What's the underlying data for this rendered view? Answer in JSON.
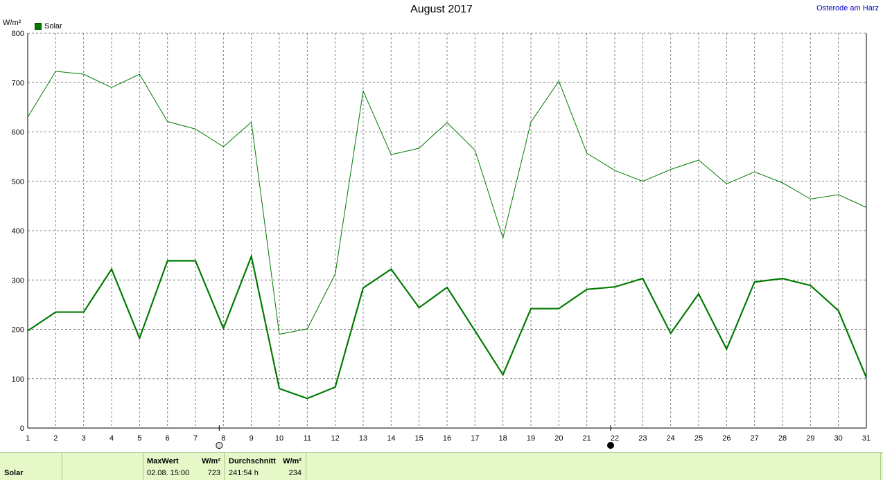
{
  "chart_data": {
    "type": "line",
    "title": "August 2017",
    "ylabel": "W/m²",
    "xlabel": "",
    "x": [
      1,
      2,
      3,
      4,
      5,
      6,
      7,
      8,
      9,
      10,
      11,
      12,
      13,
      14,
      15,
      16,
      17,
      18,
      19,
      20,
      21,
      22,
      23,
      24,
      25,
      26,
      27,
      28,
      29,
      30,
      31
    ],
    "ylim": [
      0,
      800
    ],
    "yticks": [
      0,
      100,
      200,
      300,
      400,
      500,
      600,
      700,
      800
    ],
    "grid": true,
    "legend_position": "top-left",
    "series": [
      {
        "name": "Solar",
        "role": "max",
        "color": "#007a00",
        "values": [
          630,
          723,
          717,
          690,
          717,
          621,
          606,
          570,
          620,
          190,
          201,
          312,
          683,
          554,
          567,
          619,
          563,
          385,
          620,
          703,
          557,
          522,
          500,
          524,
          543,
          495,
          519,
          497,
          464,
          473,
          447
        ]
      },
      {
        "name": "Solar",
        "role": "mean",
        "color": "#007a00",
        "values": [
          197,
          235,
          235,
          322,
          182,
          339,
          339,
          202,
          348,
          80,
          60,
          83,
          284,
          322,
          244,
          285,
          197,
          108,
          242,
          242,
          281,
          286,
          303,
          192,
          272,
          160,
          296,
          303,
          289,
          238,
          102
        ]
      }
    ],
    "markers": [
      {
        "x": 8,
        "symbol": "new-moon-outline"
      },
      {
        "x": 22,
        "symbol": "full-moon-filled"
      }
    ]
  },
  "header": {
    "location": "Osterode am Harz"
  },
  "footer": {
    "series_label": "Solar",
    "max_heading": "MaxWert",
    "max_unit": "W/m²",
    "max_time": "02.08.  15:00",
    "max_value": "723",
    "avg_heading": "Durchschnitt",
    "avg_unit": "W/m²",
    "avg_duration": "241:54 h",
    "avg_value": "234"
  }
}
